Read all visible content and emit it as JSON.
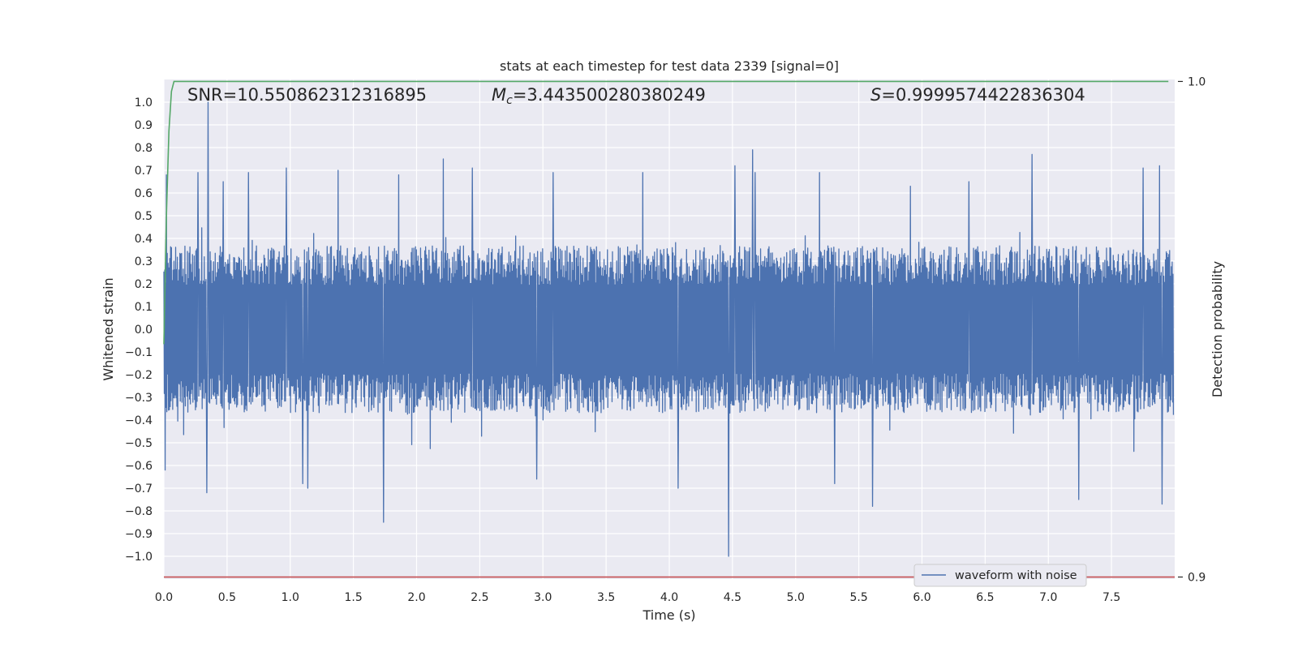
{
  "chart_data": {
    "type": "line",
    "title": "stats at each timestep for test data 2339 [signal=0]",
    "xlabel": "Time (s)",
    "ylabel": "Whitened strain",
    "y2label": "Detection probability",
    "xlim": [
      0.0,
      8.0
    ],
    "ylim": [
      -1.1,
      1.1
    ],
    "y2lim": [
      0.8996,
      1.0004
    ],
    "x_ticks": [
      "0.0",
      "0.5",
      "1.0",
      "1.5",
      "2.0",
      "2.5",
      "3.0",
      "3.5",
      "4.0",
      "4.5",
      "5.0",
      "5.5",
      "6.0",
      "6.5",
      "7.0",
      "7.5"
    ],
    "y_ticks": [
      "1.0",
      "0.9",
      "0.8",
      "0.7",
      "0.6",
      "0.5",
      "0.4",
      "0.3",
      "0.2",
      "0.1",
      "0.0",
      "−0.1",
      "−0.2",
      "−0.3",
      "−0.4",
      "−0.5",
      "−0.6",
      "−0.7",
      "−0.8",
      "−0.9",
      "−1.0"
    ],
    "y2_ticks": [
      "1.0",
      "0.9"
    ],
    "grid": true,
    "legend_position": "lower-right",
    "annotations": {
      "snr": "SNR=10.550862312316895",
      "mc_symbol": "M",
      "mc_subscript": "c",
      "mc_value": "=3.443500280380249",
      "s_symbol": "S",
      "s_value": "=0.9999574422836304"
    },
    "series": [
      {
        "name": "waveform with noise",
        "axis": "left",
        "color": "#4c72b0",
        "x_range": [
          0.0,
          7.99
        ],
        "noise_std": 0.16,
        "envelope": [
          0.35,
          -0.35
        ],
        "peaks": [
          {
            "x": 0.02,
            "y": 0.68
          },
          {
            "x": 0.01,
            "y": -0.62
          },
          {
            "x": 0.35,
            "y": 1.0
          },
          {
            "x": 0.34,
            "y": -0.72
          },
          {
            "x": 0.27,
            "y": 0.69
          },
          {
            "x": 0.47,
            "y": 0.65
          },
          {
            "x": 0.67,
            "y": 0.69
          },
          {
            "x": 0.97,
            "y": 0.71
          },
          {
            "x": 1.1,
            "y": -0.68
          },
          {
            "x": 1.14,
            "y": -0.7
          },
          {
            "x": 1.38,
            "y": 0.7
          },
          {
            "x": 1.74,
            "y": -0.85
          },
          {
            "x": 1.86,
            "y": 0.68
          },
          {
            "x": 2.21,
            "y": 0.75
          },
          {
            "x": 2.44,
            "y": 0.71
          },
          {
            "x": 2.95,
            "y": -0.66
          },
          {
            "x": 3.08,
            "y": 0.69
          },
          {
            "x": 3.79,
            "y": 0.69
          },
          {
            "x": 4.07,
            "y": -0.7
          },
          {
            "x": 4.47,
            "y": -1.0
          },
          {
            "x": 4.52,
            "y": 0.72
          },
          {
            "x": 4.66,
            "y": 0.79
          },
          {
            "x": 4.68,
            "y": 0.69
          },
          {
            "x": 5.19,
            "y": 0.69
          },
          {
            "x": 5.31,
            "y": -0.68
          },
          {
            "x": 5.61,
            "y": -0.78
          },
          {
            "x": 6.87,
            "y": 0.77
          },
          {
            "x": 7.24,
            "y": -0.75
          },
          {
            "x": 7.75,
            "y": 0.71
          },
          {
            "x": 7.9,
            "y": -0.77
          },
          {
            "x": 7.88,
            "y": 0.72
          },
          {
            "x": 6.37,
            "y": 0.65
          },
          {
            "x": 5.91,
            "y": 0.63
          }
        ]
      },
      {
        "name": "",
        "axis": "right",
        "color": "#55a868",
        "x": [
          0.0,
          0.02,
          0.04,
          0.06,
          0.08,
          0.12,
          7.95
        ],
        "y": [
          0.947,
          0.973,
          0.99,
          0.998,
          1.0,
          1.0,
          1.0
        ]
      },
      {
        "name": "",
        "axis": "right",
        "color": "#c44e52",
        "x": [
          0.0,
          8.0
        ],
        "y": [
          0.9,
          0.9
        ]
      }
    ]
  }
}
